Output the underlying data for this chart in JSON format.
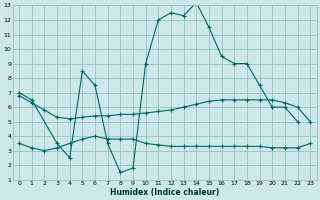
{
  "xlabel": "Humidex (Indice chaleur)",
  "xlim": [
    -0.5,
    23.5
  ],
  "ylim": [
    1,
    13
  ],
  "xticks": [
    0,
    1,
    2,
    3,
    4,
    5,
    6,
    7,
    8,
    9,
    10,
    11,
    12,
    13,
    14,
    15,
    16,
    17,
    18,
    19,
    20,
    21,
    22,
    23
  ],
  "yticks": [
    1,
    2,
    3,
    4,
    5,
    6,
    7,
    8,
    9,
    10,
    11,
    12,
    13
  ],
  "bg_color": "#cce8e8",
  "grid_color": "#9bbfbf",
  "line_color": "#006666",
  "c1_x": [
    0,
    1,
    3,
    4,
    5,
    6,
    7,
    8,
    9,
    10,
    11,
    12,
    13,
    14,
    15,
    16,
    17,
    18,
    19,
    20,
    21,
    22
  ],
  "c1_y": [
    7.0,
    6.5,
    3.5,
    2.5,
    8.5,
    7.5,
    3.5,
    1.5,
    1.8,
    9.0,
    12.0,
    12.5,
    12.3,
    13.2,
    11.5,
    9.5,
    9.0,
    9.0,
    7.5,
    6.0,
    6.0,
    5.0
  ],
  "c2_x": [
    0,
    1,
    2,
    3,
    4,
    5,
    6,
    7,
    8,
    9,
    10,
    11,
    12,
    13,
    14,
    15,
    16,
    17,
    18,
    19,
    20,
    21,
    22,
    23
  ],
  "c2_y": [
    6.8,
    6.3,
    5.8,
    5.3,
    5.2,
    5.3,
    5.4,
    5.4,
    5.5,
    5.5,
    5.6,
    5.7,
    5.8,
    6.0,
    6.2,
    6.4,
    6.5,
    6.5,
    6.5,
    6.5,
    6.5,
    6.3,
    6.0,
    5.0
  ],
  "c3_x": [
    0,
    1,
    2,
    3,
    4,
    5,
    6,
    7,
    8,
    9,
    10,
    11,
    12,
    13,
    14,
    15,
    16,
    17,
    18,
    19,
    20,
    21,
    22,
    23
  ],
  "c3_y": [
    3.5,
    3.2,
    3.0,
    3.2,
    3.5,
    3.8,
    4.0,
    3.8,
    3.8,
    3.8,
    3.5,
    3.4,
    3.3,
    3.3,
    3.3,
    3.3,
    3.3,
    3.3,
    3.3,
    3.3,
    3.2,
    3.2,
    3.2,
    3.5
  ]
}
